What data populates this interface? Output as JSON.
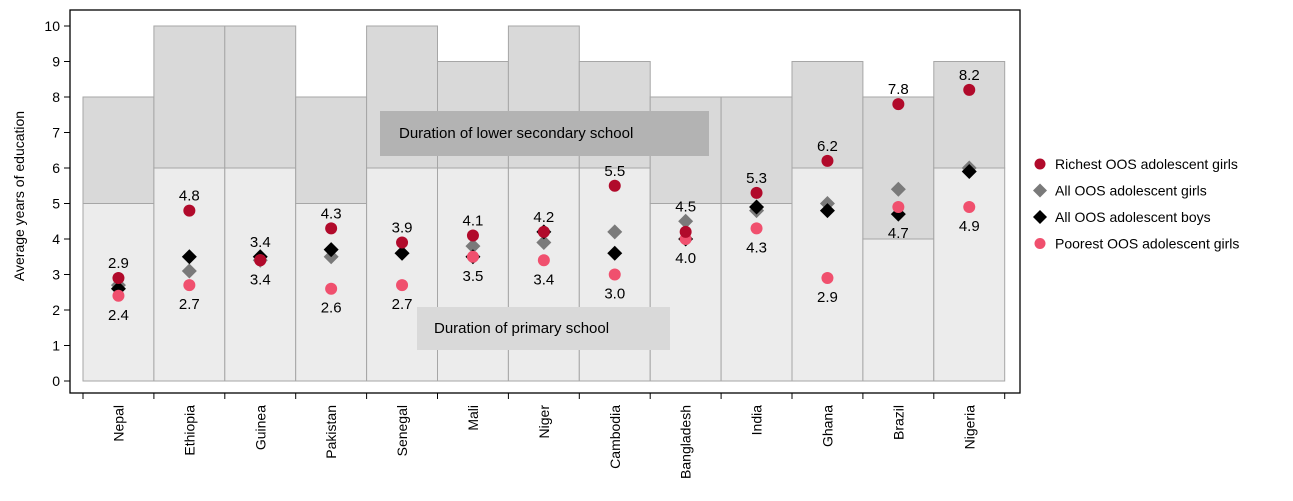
{
  "chart_data": {
    "type": "scatter",
    "title": "",
    "xlabel": "",
    "ylabel": "Average years of education",
    "ylim": [
      0,
      10
    ],
    "yticks": [
      "0",
      "1",
      "2",
      "3",
      "4",
      "5",
      "6",
      "7",
      "8",
      "9",
      "10"
    ],
    "grid": false,
    "legend_position": "right",
    "categories": [
      "Nepal",
      "Ethiopia",
      "Guinea",
      "Pakistan",
      "Senegal",
      "Mali",
      "Niger",
      "Cambodia",
      "Bangladesh",
      "India",
      "Ghana",
      "Brazil",
      "Nigeria"
    ],
    "school_duration": {
      "primary": [
        5,
        6,
        6,
        5,
        6,
        6,
        6,
        6,
        5,
        5,
        6,
        4,
        6
      ],
      "lower_secondary_total": [
        8,
        10,
        10,
        8,
        10,
        9,
        10,
        9,
        8,
        8,
        9,
        8,
        9
      ],
      "primary_label": "Duration of primary school",
      "lower_secondary_label": "Duration of lower secondary school"
    },
    "series": [
      {
        "name": "Richest OOS adolescent girls",
        "marker": "circle",
        "color": "#b10a2b",
        "values": [
          2.9,
          4.8,
          3.4,
          4.3,
          3.9,
          4.1,
          4.2,
          5.5,
          4.2,
          5.3,
          6.2,
          7.8,
          8.2
        ]
      },
      {
        "name": "All OOS adolescent girls",
        "marker": "diamond",
        "color": "#7a7a7a",
        "values": [
          2.7,
          3.1,
          3.4,
          3.5,
          3.6,
          3.8,
          3.9,
          4.2,
          4.5,
          4.8,
          5.0,
          5.4,
          6.0
        ]
      },
      {
        "name": "All OOS adolescent boys",
        "marker": "diamond",
        "color": "#000000",
        "values": [
          2.6,
          3.5,
          3.5,
          3.7,
          3.6,
          3.5,
          4.2,
          3.6,
          4.0,
          4.9,
          4.8,
          4.7,
          5.9
        ]
      },
      {
        "name": "Poorest OOS adolescent girls",
        "marker": "circle",
        "color": "#f0506e",
        "values": [
          2.4,
          2.7,
          3.4,
          2.6,
          2.7,
          3.5,
          3.4,
          3.0,
          4.0,
          4.3,
          2.9,
          4.9,
          4.9
        ]
      }
    ],
    "data_labels": {
      "above": [
        "2.9",
        "4.8",
        "3.4",
        "4.3",
        "3.9",
        "4.1",
        "4.2",
        "5.5",
        "4.5",
        "5.3",
        "6.2",
        "7.8",
        "8.2"
      ],
      "below": [
        "2.4",
        "2.7",
        "3.4",
        "2.6",
        "2.7",
        "3.5",
        "3.4",
        "3.0",
        "4.0",
        "4.3",
        "2.9",
        "4.7",
        "4.9"
      ]
    },
    "colors": {
      "primary_band": "#ececec",
      "secondary_band": "#d9d9d9",
      "band_border": "#a6a6a6",
      "primary_label_box": "#d9d9d9",
      "secondary_label_box": "#b3b3b3"
    }
  }
}
